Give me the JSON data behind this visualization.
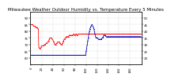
{
  "title": "Milwaukee Weather Outdoor Humidity vs. Temperature Every 5 Minutes",
  "red_y": [
    85,
    85,
    85,
    85,
    84,
    84,
    84,
    84,
    83,
    83,
    83,
    83,
    82,
    82,
    68,
    67,
    67,
    67,
    68,
    69,
    69,
    69,
    69,
    69,
    70,
    70,
    70,
    71,
    71,
    71,
    72,
    72,
    73,
    74,
    75,
    75,
    75,
    75,
    74,
    74,
    73,
    72,
    71,
    70,
    70,
    70,
    71,
    71,
    72,
    72,
    72,
    72,
    71,
    71,
    70,
    70,
    70,
    71,
    72,
    73,
    74,
    74,
    75,
    75,
    76,
    76,
    76,
    76,
    76,
    77,
    77,
    77,
    77,
    77,
    77,
    77,
    77,
    78,
    78,
    77,
    77,
    78,
    78,
    77,
    77,
    78,
    78,
    78,
    78,
    78,
    78,
    78,
    78,
    78,
    78,
    78,
    78,
    78,
    78,
    78,
    78,
    78,
    78,
    78,
    78,
    78,
    78,
    78,
    78,
    78,
    78,
    78,
    78,
    78,
    78,
    78,
    78,
    78,
    78,
    78,
    78,
    78,
    78,
    78,
    78,
    78,
    78,
    78,
    78,
    78,
    78,
    78,
    78,
    78,
    78,
    78,
    78,
    78,
    78,
    78,
    78,
    78,
    78,
    78,
    78,
    78,
    78,
    78,
    78,
    78,
    78,
    78,
    78,
    78,
    78,
    78,
    78,
    78,
    78,
    78,
    78,
    78,
    78,
    78,
    78,
    78,
    78,
    78,
    78,
    78,
    78,
    78,
    78,
    78,
    78,
    78,
    78,
    78,
    78,
    78,
    78,
    78,
    78,
    78,
    78,
    78,
    78,
    78,
    78,
    78,
    78,
    78,
    78,
    78,
    78,
    78,
    78,
    78,
    78,
    78
  ],
  "blue_y": [
    22,
    22,
    22,
    22,
    22,
    22,
    22,
    22,
    22,
    22,
    22,
    22,
    22,
    22,
    22,
    22,
    22,
    22,
    22,
    22,
    22,
    22,
    22,
    22,
    22,
    22,
    22,
    22,
    22,
    22,
    22,
    22,
    22,
    22,
    22,
    22,
    22,
    22,
    22,
    22,
    22,
    22,
    22,
    22,
    22,
    22,
    22,
    22,
    22,
    22,
    22,
    22,
    22,
    22,
    22,
    22,
    22,
    22,
    22,
    22,
    22,
    22,
    22,
    22,
    22,
    22,
    22,
    22,
    22,
    22,
    22,
    22,
    22,
    22,
    22,
    22,
    22,
    22,
    22,
    22,
    22,
    22,
    22,
    22,
    22,
    22,
    22,
    22,
    22,
    22,
    22,
    22,
    22,
    22,
    22,
    22,
    22,
    22,
    22,
    22,
    25,
    27,
    30,
    33,
    35,
    38,
    40,
    42,
    43,
    44,
    45,
    45,
    44,
    43,
    42,
    40,
    38,
    36,
    35,
    35,
    35,
    35,
    34,
    34,
    34,
    34,
    34,
    34,
    34,
    35,
    35,
    36,
    37,
    37,
    37,
    37,
    36,
    36,
    36,
    36,
    36,
    36,
    36,
    36,
    36,
    36,
    36,
    36,
    36,
    36,
    36,
    36,
    36,
    36,
    36,
    36,
    36,
    36,
    36,
    36,
    36,
    36,
    36,
    36,
    36,
    36,
    36,
    36,
    36,
    36,
    36,
    36,
    36,
    36,
    36,
    36,
    36,
    36,
    36,
    36,
    36,
    36,
    36,
    36,
    36,
    36,
    36,
    36,
    36,
    36,
    36,
    36,
    36,
    36,
    36,
    36,
    36,
    36,
    36,
    36
  ],
  "red_color": "#ff0000",
  "blue_color": "#0000bb",
  "bg_color": "#ffffff",
  "grid_color": "#999999",
  "ylim_left": [
    55,
    95
  ],
  "ylim_right": [
    15,
    55
  ],
  "y_ticks_left": [
    60,
    65,
    70,
    75,
    80,
    85,
    90
  ],
  "y_ticks_right": [
    20,
    25,
    30,
    35,
    40,
    45,
    50
  ],
  "title_fontsize": 4.0,
  "tick_fontsize": 2.8,
  "marker_size": 0.6,
  "line_width": 0.55,
  "n_points": 200,
  "x_tick_step": 20
}
